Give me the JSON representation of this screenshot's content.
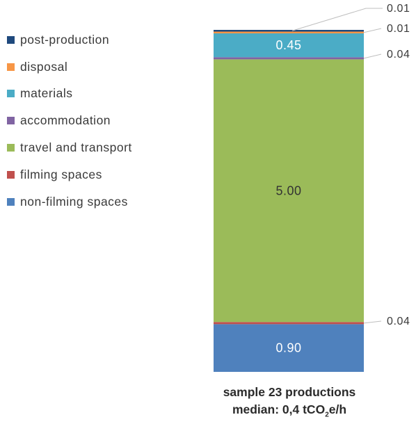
{
  "chart_data": {
    "type": "bar",
    "stacked": true,
    "categories": [
      "sample 23 productions"
    ],
    "series": [
      {
        "name": "non-filming spaces",
        "color": "#4F81BD",
        "values": [
          0.9
        ],
        "label": "0.90",
        "label_style": "inside"
      },
      {
        "name": "filming spaces",
        "color": "#C0504D",
        "values": [
          0.04
        ],
        "label": "0.04",
        "label_style": "callout"
      },
      {
        "name": "travel and transport",
        "color": "#9BBB59",
        "values": [
          5.0
        ],
        "label": "5.00",
        "label_style": "inside"
      },
      {
        "name": "accommodation",
        "color": "#8064A2",
        "values": [
          0.04
        ],
        "label": "0.04",
        "label_style": "callout"
      },
      {
        "name": "materials",
        "color": "#4BACC6",
        "values": [
          0.45
        ],
        "label": "0.45",
        "label_style": "inside"
      },
      {
        "name": "disposal",
        "color": "#F79646",
        "values": [
          0.01
        ],
        "label": "0.01",
        "label_style": "callout"
      },
      {
        "name": "post-production",
        "color": "#1F497D",
        "values": [
          0.01
        ],
        "label": "0.01",
        "label_style": "callout"
      }
    ],
    "legend": {
      "position": "left",
      "order": [
        "post-production",
        "disposal",
        "materials",
        "accommodation",
        "travel and transport",
        "filming spaces",
        "non-filming spaces"
      ]
    },
    "grid": false,
    "axes_visible": false
  },
  "caption": {
    "line1": "sample 23 productions",
    "line2_prefix": "median: 0,4 tCO",
    "line2_sub": "2",
    "line2_suffix": "e/h"
  }
}
